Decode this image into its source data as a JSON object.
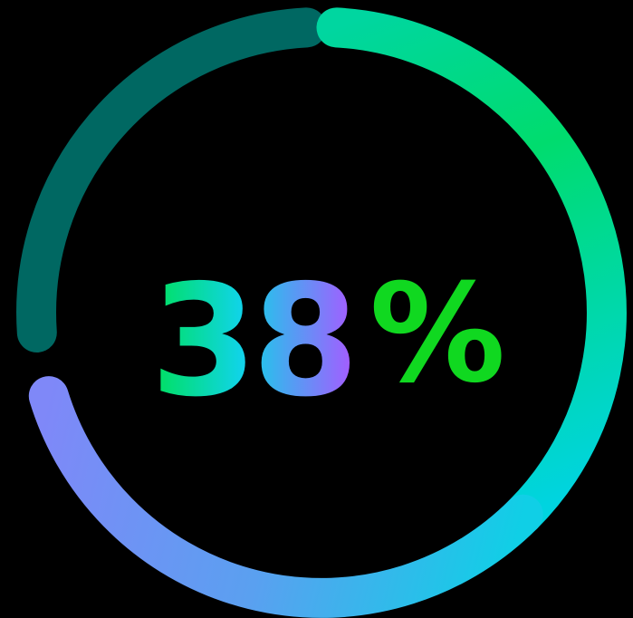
{
  "value": "38",
  "unit": "%"
}
